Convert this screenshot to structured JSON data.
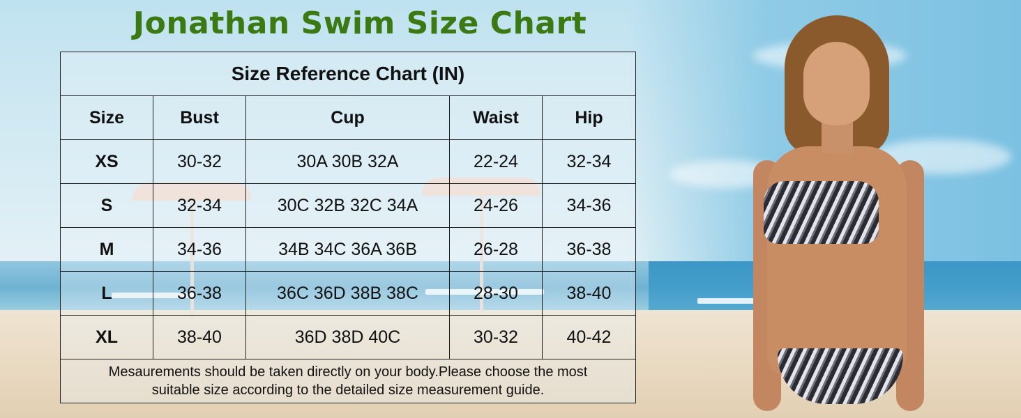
{
  "headline": "Jonathan Swim Size Chart",
  "colors": {
    "headline": "#3b7a12",
    "border": "#1d1d1d",
    "text": "#111111"
  },
  "table": {
    "caption": "Size Reference Chart (IN)",
    "headers": [
      "Size",
      "Bust",
      "Cup",
      "Waist",
      "Hip"
    ],
    "rows": [
      {
        "size": "XS",
        "bust": "30-32",
        "cup": "30A 30B 32A",
        "waist": "22-24",
        "hip": "32-34"
      },
      {
        "size": "S",
        "bust": "32-34",
        "cup": "30C 32B 32C 34A",
        "waist": "24-26",
        "hip": "34-36"
      },
      {
        "size": "M",
        "bust": "34-36",
        "cup": "34B 34C 36A 36B",
        "waist": "26-28",
        "hip": "36-38"
      },
      {
        "size": "L",
        "bust": "36-38",
        "cup": "36C 36D 38B 38C",
        "waist": "28-30",
        "hip": "38-40"
      },
      {
        "size": "XL",
        "bust": "38-40",
        "cup": "36D 38D 40C",
        "waist": "30-32",
        "hip": "40-42"
      }
    ],
    "note_line1": "Mesaurements should be taken directly on your body.Please choose the most",
    "note_line2": "suitable size according to the detailed size measurement guide."
  }
}
